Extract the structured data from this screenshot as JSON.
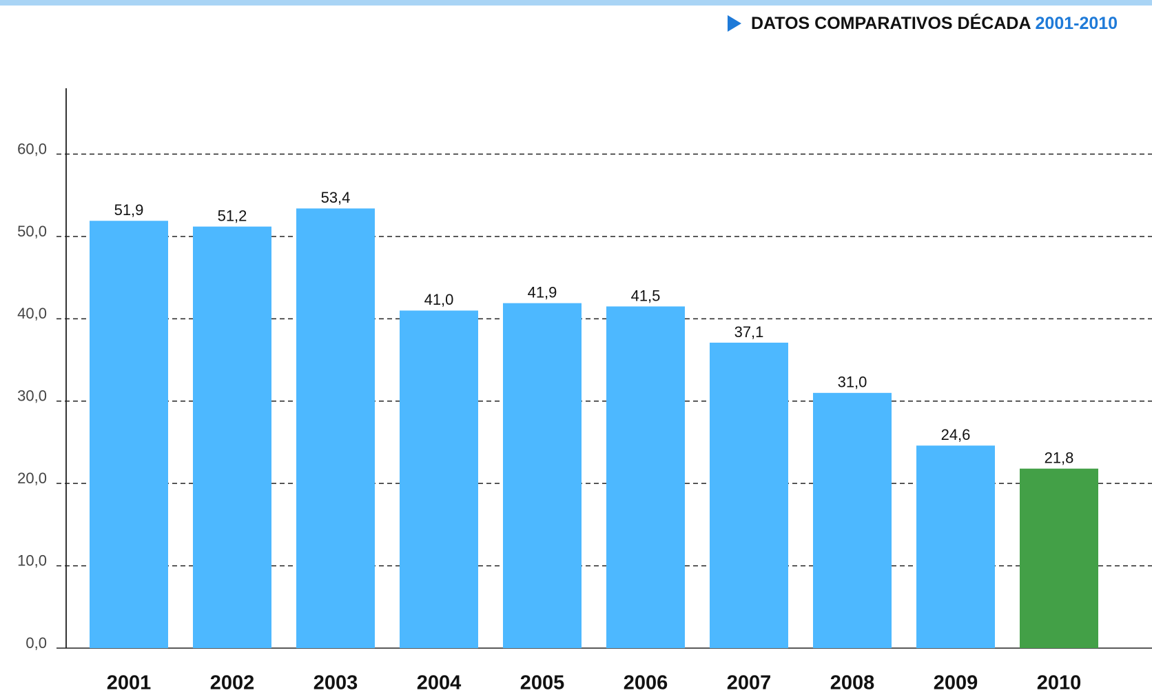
{
  "chart_data": {
    "type": "bar",
    "title": "DATOS COMPARATIVOS DÉCADA",
    "subtitle": "2001-2010",
    "categories": [
      "2001",
      "2002",
      "2003",
      "2004",
      "2005",
      "2006",
      "2007",
      "2008",
      "2009",
      "2010"
    ],
    "values": [
      51.9,
      51.2,
      53.4,
      41.0,
      41.9,
      41.5,
      37.1,
      31.0,
      24.6,
      21.8
    ],
    "value_labels": [
      "51,9",
      "51,2",
      "53,4",
      "41,0",
      "41,9",
      "41,5",
      "37,1",
      "31,0",
      "24,6",
      "21,8"
    ],
    "colors": [
      "#4db8ff",
      "#4db8ff",
      "#4db8ff",
      "#4db8ff",
      "#4db8ff",
      "#4db8ff",
      "#4db8ff",
      "#4db8ff",
      "#4db8ff",
      "#43a047"
    ],
    "ylim": [
      0,
      68
    ],
    "yticks": [
      {
        "value": 0,
        "label": "0,0"
      },
      {
        "value": 10,
        "label": "10,0"
      },
      {
        "value": 20,
        "label": "20,0"
      },
      {
        "value": 30,
        "label": "30,0"
      },
      {
        "value": 40,
        "label": "40,0"
      },
      {
        "value": 50,
        "label": "50,0"
      },
      {
        "value": 60,
        "label": "60,0"
      }
    ],
    "grid": true
  }
}
